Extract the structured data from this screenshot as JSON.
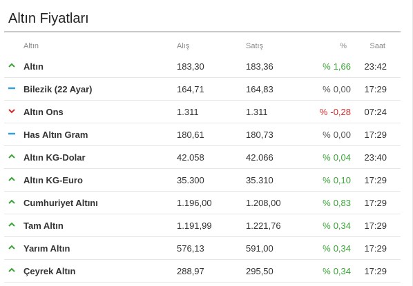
{
  "widget": {
    "title": "Altın Fiyatları"
  },
  "columns": {
    "name": "Altın",
    "buy": "Alış",
    "sell": "Satış",
    "change": "%",
    "time": "Saat"
  },
  "colors": {
    "up": "#3aa335",
    "down": "#d62a2a",
    "flat": "#2f9fe0"
  },
  "rows": [
    {
      "trend": "up",
      "name": "Altın",
      "buy": "183,30",
      "sell": "183,36",
      "sign": "%",
      "change": "1,66",
      "time": "23:42"
    },
    {
      "trend": "flat",
      "name": "Bilezik (22 Ayar)",
      "buy": "164,71",
      "sell": "164,83",
      "sign": "%",
      "change": "0,00",
      "time": "17:29"
    },
    {
      "trend": "down",
      "name": "Altın Ons",
      "buy": "1.311",
      "sell": "1.311",
      "sign": "%",
      "change": "-0,28",
      "time": "07:24"
    },
    {
      "trend": "flat",
      "name": "Has Altın Gram",
      "buy": "180,61",
      "sell": "180,73",
      "sign": "%",
      "change": "0,00",
      "time": "17:29"
    },
    {
      "trend": "up",
      "name": "Altın KG-Dolar",
      "buy": "42.058",
      "sell": "42.066",
      "sign": "%",
      "change": "0,04",
      "time": "23:40"
    },
    {
      "trend": "up",
      "name": "Altın KG-Euro",
      "buy": "35.300",
      "sell": "35.310",
      "sign": "%",
      "change": "0,10",
      "time": "17:29"
    },
    {
      "trend": "up",
      "name": "Cumhuriyet Altını",
      "buy": "1.196,00",
      "sell": "1.208,00",
      "sign": "%",
      "change": "0,83",
      "time": "17:29"
    },
    {
      "trend": "up",
      "name": "Tam Altın",
      "buy": "1.191,99",
      "sell": "1.221,76",
      "sign": "%",
      "change": "0,34",
      "time": "17:29"
    },
    {
      "trend": "up",
      "name": "Yarım Altın",
      "buy": "576,13",
      "sell": "591,00",
      "sign": "%",
      "change": "0,34",
      "time": "17:29"
    },
    {
      "trend": "up",
      "name": "Çeyrek Altın",
      "buy": "288,97",
      "sell": "295,50",
      "sign": "%",
      "change": "0,34",
      "time": "17:29"
    }
  ]
}
